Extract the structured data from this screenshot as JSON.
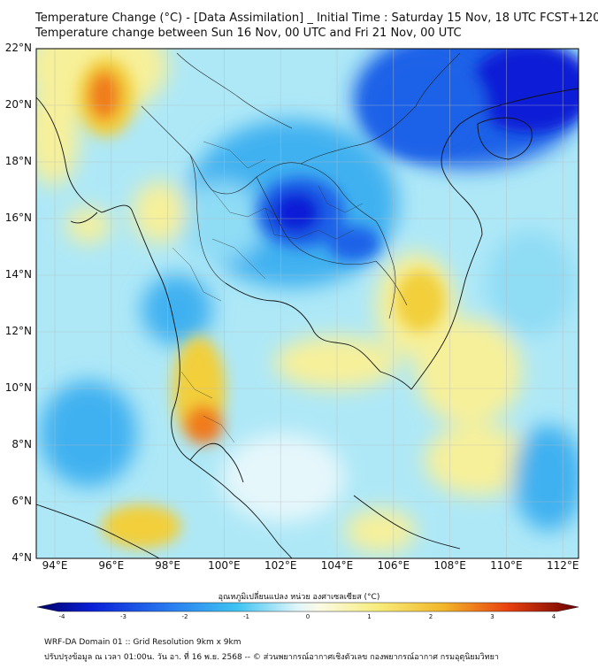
{
  "header": {
    "title_line1": "Temperature Change (°C) - [Data Assimilation] _ Initial Time : Saturday 15 Nov, 18 UTC FCST+120",
    "title_line2": "Temperature change between Sun 16 Nov, 00 UTC and Fri 21 Nov, 00 UTC"
  },
  "map": {
    "lat_labels": [
      "22°N",
      "20°N",
      "18°N",
      "16°N",
      "14°N",
      "12°N",
      "10°N",
      "8°N",
      "6°N",
      "4°N"
    ],
    "lon_labels": [
      "94°E",
      "96°E",
      "98°E",
      "100°E",
      "102°E",
      "104°E",
      "106°E",
      "108°E",
      "110°E",
      "112°E"
    ],
    "colors": {
      "very_cold": "#0a1fd6",
      "cold": "#1e62e8",
      "cool": "#3fb1f0",
      "mild_cool": "#8fdcf5",
      "neutral": "#e6f7fb",
      "mild_warm": "#f7f09a",
      "warm": "#f2cf3b",
      "hot": "#f07a1c",
      "very_hot": "#e02a10"
    }
  },
  "colorbar": {
    "title": "อุณหภูมิเปลี่ยนแปลง หน่วย องศาเซลเซียส (°C)",
    "ticks": [
      "-4",
      "-3",
      "-2",
      "-1",
      "0",
      "1",
      "2",
      "3",
      "4"
    ]
  },
  "footer": {
    "line1": "WRF-DA Domain 01 :: Grid Resolution 9km x 9km",
    "line2": "ปรับปรุงข้อมูล ณ เวลา 01:00น. วัน อา. ที่ 16 พ.ย. 2568 -- © ส่วนพยากรณ์อากาศเชิงตัวเลข กองพยากรณ์อากาศ กรมอุตุนิยมวิทยา"
  }
}
